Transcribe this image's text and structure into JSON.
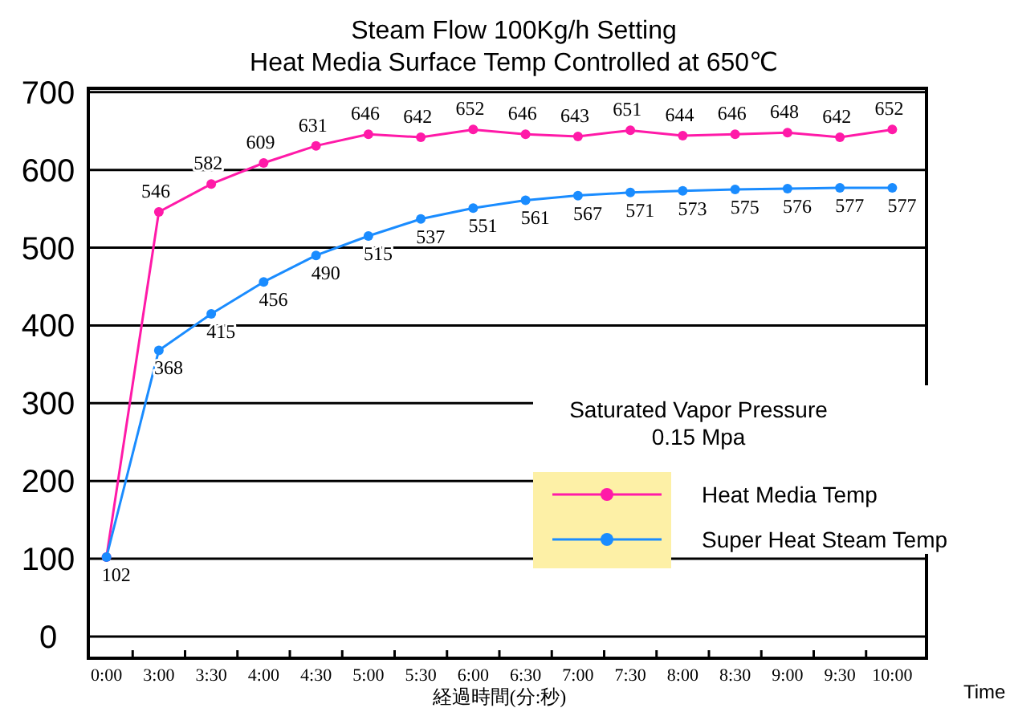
{
  "chart_data": {
    "type": "line",
    "title": "Steam Flow 100Kg/h Setting",
    "subtitle": "Heat Media Surface Temp Controlled at 650℃",
    "xlabel": "経過時間(分:秒)",
    "annotations": [
      "Saturated Vapor Pressure",
      "0.15 Mpa",
      "Time"
    ],
    "categories": [
      "0:00",
      "3:00",
      "3:30",
      "4:00",
      "4:30",
      "5:00",
      "5:30",
      "6:00",
      "6:30",
      "7:00",
      "7:30",
      "8:00",
      "8:30",
      "9:00",
      "9:30",
      "10:00"
    ],
    "series": [
      {
        "name": "Heat Media Temp",
        "color": "#ff1aa8",
        "values": [
          102,
          546,
          582,
          609,
          631,
          646,
          642,
          652,
          646,
          643,
          651,
          644,
          646,
          648,
          642,
          652
        ],
        "value_labels": [
          null,
          "546",
          "582",
          "609",
          "631",
          "646",
          "642",
          "652",
          "646",
          "643",
          "651",
          "644",
          "646",
          "648",
          "642",
          "652"
        ]
      },
      {
        "name": "Super Heat Steam Temp",
        "color": "#1a8cff",
        "values": [
          102,
          368,
          415,
          456,
          490,
          515,
          537,
          551,
          561,
          567,
          571,
          573,
          575,
          576,
          577,
          577
        ],
        "value_labels": [
          "102",
          "368",
          "415",
          "456",
          "490",
          "515",
          "537",
          "551",
          "561",
          "567",
          "571",
          "573",
          "575",
          "576",
          "577",
          "577"
        ]
      }
    ],
    "ylim": [
      -28,
      705
    ],
    "yticks": [
      0,
      100,
      200,
      300,
      400,
      500,
      600,
      700
    ],
    "grid": "y",
    "legend": "right",
    "marker": "circle",
    "line_style": "solid"
  }
}
